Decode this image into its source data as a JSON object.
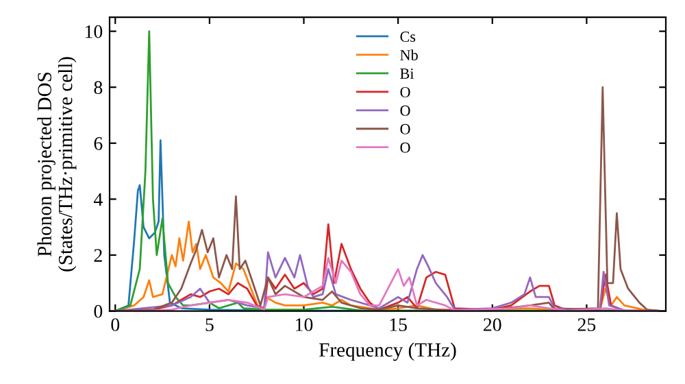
{
  "chart_data": {
    "type": "line",
    "xlabel": "Frequency (THz)",
    "ylabel": "Phonon projected DOS\n(States/THz·primitive cell)",
    "xlim": [
      -0.3,
      29.2
    ],
    "ylim": [
      0,
      10.5
    ],
    "xticks": [
      0,
      5,
      10,
      15,
      20,
      25
    ],
    "yticks": [
      0,
      2,
      4,
      6,
      8,
      10
    ],
    "legend": "top",
    "grid": false,
    "marker": "none",
    "line_style": "solid",
    "series": [
      {
        "name": "Cs",
        "color": "#1f77b4",
        "x": [
          0,
          0.7,
          1.0,
          1.2,
          1.3,
          1.5,
          1.8,
          2.1,
          2.3,
          2.4,
          2.6,
          2.9,
          3.5,
          5,
          8,
          15,
          25,
          26,
          27,
          29
        ],
        "values": [
          0,
          0.2,
          2.5,
          4.3,
          4.5,
          3.0,
          2.6,
          2.8,
          3.2,
          6.1,
          2.0,
          0.3,
          0.1,
          0.05,
          0.02,
          0.01,
          0.01,
          0.02,
          0.01,
          0
        ]
      },
      {
        "name": "Nb",
        "color": "#ff7f0e",
        "x": [
          0,
          1,
          1.5,
          1.8,
          2.0,
          2.5,
          3.0,
          3.2,
          3.4,
          3.6,
          3.9,
          4.1,
          4.3,
          4.5,
          4.8,
          5.2,
          5.6,
          6.0,
          6.4,
          6.8,
          7.2,
          7.6,
          7.9,
          8.0,
          8.5,
          9,
          10,
          11,
          11.5,
          12,
          12.5,
          14,
          15,
          16,
          17,
          20,
          22,
          23,
          25.7,
          26,
          26.3,
          26.6,
          27,
          28,
          29
        ],
        "values": [
          0,
          0.2,
          0.5,
          1.1,
          0.5,
          0.6,
          2.0,
          1.6,
          2.6,
          1.8,
          3.2,
          2.1,
          2.4,
          1.5,
          2.0,
          1.2,
          1.0,
          0.7,
          1.7,
          1.5,
          0.8,
          0.1,
          0.1,
          0.5,
          0.3,
          0.2,
          0.2,
          0.3,
          0.2,
          0.4,
          0.2,
          0.05,
          0.1,
          0.2,
          0.05,
          0.05,
          0.1,
          0.05,
          0.02,
          0.8,
          0.2,
          0.5,
          0.2,
          0.05,
          0
        ]
      },
      {
        "name": "Bi",
        "color": "#2ca02c",
        "x": [
          0,
          0.8,
          1.3,
          1.6,
          1.8,
          2.0,
          2.2,
          2.5,
          2.8,
          3.2,
          3.6,
          4,
          5,
          5.5,
          6.5,
          6.8,
          8,
          10,
          11.5,
          13,
          29
        ],
        "values": [
          0,
          0.2,
          1.5,
          5.0,
          10.0,
          4.0,
          2.0,
          3.3,
          1.0,
          0.5,
          0.2,
          0.2,
          0.3,
          0.1,
          0.3,
          0.1,
          0.05,
          0.05,
          0.15,
          0.02,
          0
        ]
      },
      {
        "name": "O",
        "color": "#d62728",
        "x": [
          0,
          2,
          3,
          3.5,
          4,
          4.5,
          5,
          5.5,
          6,
          6.5,
          7,
          7.5,
          7.9,
          8.1,
          8.5,
          9,
          9.5,
          10,
          10.5,
          11,
          11.3,
          11.6,
          12,
          12.5,
          13,
          13.5,
          14,
          15,
          15.5,
          16,
          16.5,
          17,
          17.5,
          18,
          20,
          21,
          22,
          22.5,
          23,
          23.3,
          24,
          25.7,
          26,
          26.3,
          27,
          29
        ],
        "values": [
          0,
          0.05,
          0.2,
          0.4,
          0.6,
          0.5,
          0.7,
          0.8,
          0.6,
          1.0,
          0.8,
          0.2,
          0.1,
          1.2,
          0.8,
          1.3,
          0.8,
          1.0,
          0.6,
          0.8,
          3.1,
          1.0,
          2.4,
          1.5,
          0.8,
          0.3,
          0.05,
          0.3,
          0.5,
          0.1,
          1.2,
          1.4,
          1.3,
          0.1,
          0.05,
          0.2,
          0.7,
          0.9,
          0.9,
          0.2,
          0.02,
          0.02,
          1.3,
          0.2,
          0.02,
          0
        ]
      },
      {
        "name": "O",
        "color": "#9467bd",
        "x": [
          0,
          3,
          4,
          4.5,
          5,
          6,
          7,
          7.9,
          8.1,
          8.5,
          9,
          9.5,
          9.8,
          10.2,
          10.5,
          11,
          11.3,
          11.7,
          12.5,
          13.5,
          14,
          15,
          15.5,
          16,
          16.3,
          16.6,
          17,
          17.6,
          18,
          20,
          21,
          21.7,
          22,
          22.3,
          23,
          23.3,
          25.7,
          25.9,
          26.2,
          27,
          29
        ],
        "values": [
          0,
          0.2,
          0.5,
          0.8,
          0.3,
          0.4,
          0.2,
          0.1,
          2.1,
          1.2,
          1.9,
          1.2,
          2.0,
          0.9,
          0.5,
          0.6,
          1.5,
          0.6,
          0.4,
          0.2,
          0.1,
          0.5,
          0.3,
          1.5,
          2.0,
          1.6,
          1.0,
          0.5,
          0.05,
          0.1,
          0.3,
          0.6,
          1.2,
          0.5,
          0.5,
          0.1,
          0.05,
          1.4,
          0.2,
          0.02,
          0
        ]
      },
      {
        "name": "O",
        "color": "#8c564b",
        "x": [
          0,
          2,
          3,
          3.5,
          4,
          4.3,
          4.6,
          4.9,
          5.2,
          5.5,
          5.9,
          6.2,
          6.4,
          6.6,
          6.9,
          7.3,
          7.7,
          8.1,
          8.5,
          9,
          10,
          11,
          11.5,
          12,
          13,
          14,
          15,
          16,
          18,
          20,
          22,
          23,
          23.3,
          25.6,
          25.85,
          26.1,
          26.4,
          26.6,
          26.8,
          27.2,
          27.8,
          28.2,
          29
        ],
        "values": [
          0,
          0.05,
          0.3,
          0.8,
          1.7,
          2.2,
          2.9,
          2.1,
          2.6,
          1.2,
          2.0,
          1.5,
          4.1,
          1.5,
          1.8,
          1.0,
          0.2,
          1.2,
          0.6,
          0.9,
          0.5,
          0.4,
          0.7,
          0.3,
          0.1,
          0.05,
          0.2,
          0.1,
          0.02,
          0.05,
          0.2,
          0.3,
          0.05,
          0.1,
          8.0,
          1.0,
          1.0,
          3.5,
          1.5,
          0.8,
          0.3,
          0.05,
          0
        ]
      },
      {
        "name": "O",
        "color": "#e377c2",
        "x": [
          0,
          2,
          3,
          4,
          5,
          6,
          7,
          7.9,
          8.1,
          9,
          10,
          10.5,
          11,
          11.3,
          11.7,
          12,
          12.5,
          13,
          13.5,
          14,
          15,
          15.3,
          15.6,
          16,
          16.5,
          17.5,
          18,
          21,
          22,
          23,
          24,
          26,
          27,
          29
        ],
        "values": [
          0,
          0.02,
          0.05,
          0.2,
          0.3,
          0.4,
          0.3,
          0.05,
          0.5,
          0.6,
          0.5,
          0.7,
          0.9,
          1.9,
          1.0,
          1.8,
          1.4,
          0.6,
          0.2,
          0.2,
          1.5,
          0.9,
          1.2,
          0.2,
          0.4,
          0.2,
          0.02,
          0.1,
          0.2,
          0.1,
          0.02,
          0.1,
          0.02,
          0
        ]
      }
    ]
  }
}
